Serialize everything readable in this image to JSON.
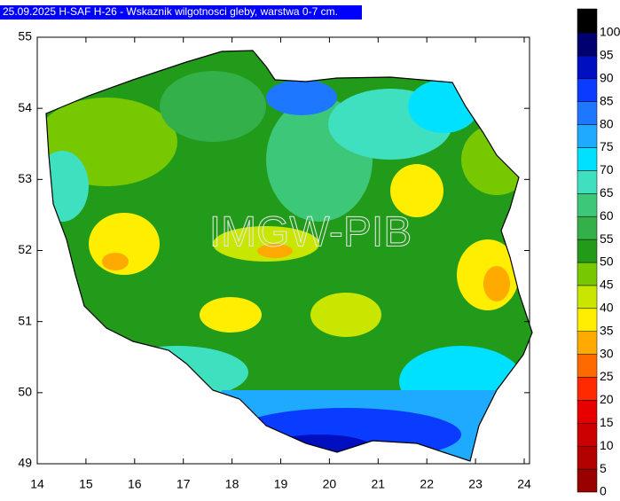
{
  "title": "25.09.2025 H-SAF H-26 - Wskaznik wilgotnosci gleby, warstwa 0-7 cm.",
  "watermark": "IMGW-PIB",
  "axis": {
    "x_ticks": [
      14,
      15,
      16,
      17,
      18,
      19,
      20,
      21,
      22,
      23,
      24
    ],
    "y_ticks": [
      55,
      54,
      53,
      52,
      51,
      50,
      49
    ]
  },
  "colorbar": {
    "labels": [
      0,
      5,
      10,
      15,
      20,
      25,
      30,
      35,
      40,
      45,
      50,
      55,
      60,
      65,
      70,
      75,
      80,
      85,
      90,
      95,
      100
    ],
    "colors": [
      "#990000",
      "#b30000",
      "#cc0000",
      "#e60000",
      "#ff2a00",
      "#ff6a00",
      "#ffaa00",
      "#ffee00",
      "#c8e600",
      "#78c800",
      "#229a1a",
      "#34b04a",
      "#3cc878",
      "#3ee0c0",
      "#00e0ff",
      "#1eaaff",
      "#1e78ff",
      "#0a3cff",
      "#0010c0",
      "#000070",
      "#000000"
    ]
  }
}
